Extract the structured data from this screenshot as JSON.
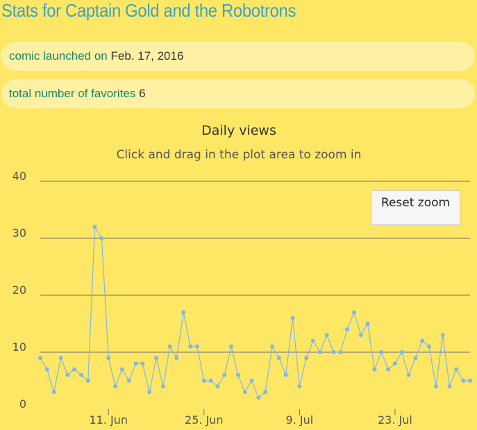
{
  "page": {
    "title": "Stats for Captain Gold and the Robotrons"
  },
  "info": {
    "launch_label": "comic launched on",
    "launch_value": "Feb. 17, 2016",
    "favorites_label": "total number of favorites",
    "favorites_value": "6"
  },
  "chart_controls": {
    "reset_zoom_label": "Reset zoom"
  },
  "colors": {
    "background": "#ffe766",
    "pill": "#fff1a4",
    "title": "#3fa2c2",
    "label": "#13876b",
    "series_line": "#7cb5ec",
    "gridline": "#6f6f6f"
  },
  "chart_data": {
    "type": "line",
    "title": "Daily views",
    "subtitle": "Click and drag in the plot area to zoom in",
    "xlabel": "",
    "ylabel": "",
    "ylim": [
      0,
      40
    ],
    "yticks": [
      0,
      10,
      20,
      30,
      40
    ],
    "xticks": [
      {
        "label": "11. Jun",
        "date": "2016-06-11"
      },
      {
        "label": "25. Jun",
        "date": "2016-06-25"
      },
      {
        "label": "9. Jul",
        "date": "2016-07-09"
      },
      {
        "label": "23. Jul",
        "date": "2016-07-23"
      }
    ],
    "xlim": [
      "2016-06-01",
      "2016-08-03"
    ],
    "grid": true,
    "legend": "none",
    "series": [
      {
        "x": [
          "2016-06-01",
          "2016-06-02",
          "2016-06-03",
          "2016-06-04",
          "2016-06-05",
          "2016-06-06",
          "2016-06-07",
          "2016-06-08",
          "2016-06-09",
          "2016-06-10",
          "2016-06-11",
          "2016-06-12",
          "2016-06-13",
          "2016-06-14",
          "2016-06-15",
          "2016-06-16",
          "2016-06-17",
          "2016-06-18",
          "2016-06-19",
          "2016-06-20",
          "2016-06-21",
          "2016-06-22",
          "2016-06-23",
          "2016-06-24",
          "2016-06-25",
          "2016-06-26",
          "2016-06-27",
          "2016-06-28",
          "2016-06-29",
          "2016-06-30",
          "2016-07-01",
          "2016-07-02",
          "2016-07-03",
          "2016-07-04",
          "2016-07-05",
          "2016-07-06",
          "2016-07-07",
          "2016-07-08",
          "2016-07-09",
          "2016-07-10",
          "2016-07-11",
          "2016-07-12",
          "2016-07-13",
          "2016-07-14",
          "2016-07-15",
          "2016-07-16",
          "2016-07-17",
          "2016-07-18",
          "2016-07-19",
          "2016-07-20",
          "2016-07-21",
          "2016-07-22",
          "2016-07-23",
          "2016-07-24",
          "2016-07-25",
          "2016-07-26",
          "2016-07-27",
          "2016-07-28",
          "2016-07-29",
          "2016-07-30",
          "2016-07-31",
          "2016-08-01",
          "2016-08-02",
          "2016-08-03"
        ],
        "values": [
          9,
          7,
          3,
          9,
          6,
          7,
          6,
          5,
          32,
          30,
          9,
          4,
          7,
          5,
          8,
          8,
          3,
          9,
          4,
          11,
          9,
          17,
          11,
          11,
          5,
          5,
          4,
          6,
          11,
          6,
          3,
          5,
          2,
          3,
          11,
          9,
          6,
          16,
          4,
          9,
          12,
          10,
          13,
          10,
          10,
          14,
          17,
          13,
          15,
          7,
          10,
          7,
          8,
          10,
          6,
          9,
          12,
          11,
          4,
          13,
          4,
          7,
          5,
          5
        ]
      }
    ]
  }
}
